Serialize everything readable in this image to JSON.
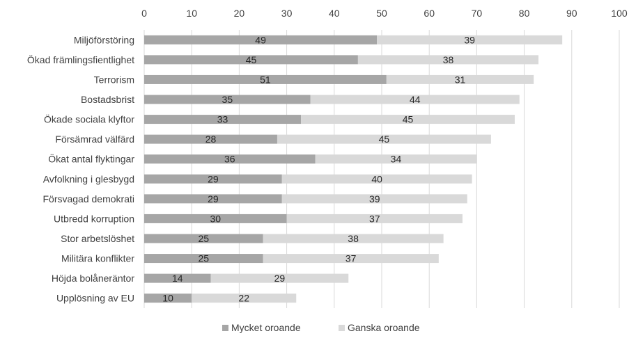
{
  "chart_data": {
    "type": "bar",
    "orientation": "horizontal",
    "stacked": true,
    "categories": [
      "Miljöförstöring",
      "Ökad främlingsfientlighet",
      "Terrorism",
      "Bostadsbrist",
      "Ökade sociala klyftor",
      "Försämrad välfärd",
      "Ökat antal flyktingar",
      "Avfolkning i glesbygd",
      "Försvagad demokrati",
      "Utbredd korruption",
      "Stor arbetslöshet",
      "Militära konflikter",
      "Höjda bolåneräntor",
      "Upplösning av EU"
    ],
    "series": [
      {
        "name": "Mycket oroande",
        "color": "#a6a6a6",
        "values": [
          49,
          45,
          51,
          35,
          33,
          28,
          36,
          29,
          29,
          30,
          25,
          25,
          14,
          10
        ]
      },
      {
        "name": "Ganska oroande",
        "color": "#d9d9d9",
        "values": [
          39,
          38,
          31,
          44,
          45,
          45,
          34,
          40,
          39,
          37,
          38,
          37,
          29,
          22
        ]
      }
    ],
    "xlim": [
      0,
      100
    ],
    "xticks": [
      "0",
      "10",
      "20",
      "30",
      "40",
      "50",
      "60",
      "70",
      "80",
      "90",
      "100"
    ],
    "axis_position": "top",
    "grid": true,
    "gridline_color": "#d9d9d9",
    "legend_position": "bottom",
    "title": "",
    "xlabel": "",
    "ylabel": ""
  }
}
